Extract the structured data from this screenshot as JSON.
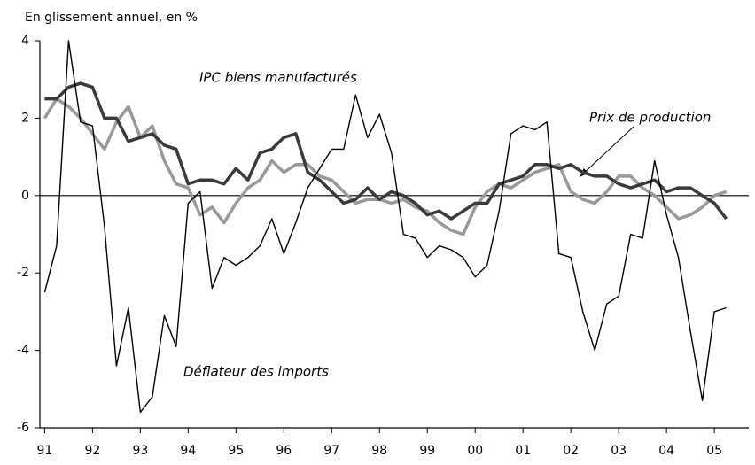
{
  "chart_data": {
    "type": "line",
    "ylabel": "En glissement annuel, en %",
    "x": [
      1991,
      1991.25,
      1991.5,
      1991.75,
      1992,
      1992.25,
      1992.5,
      1992.75,
      1993,
      1993.25,
      1993.5,
      1993.75,
      1994,
      1994.25,
      1994.5,
      1994.75,
      1995,
      1995.25,
      1995.5,
      1995.75,
      1996,
      1996.25,
      1996.5,
      1996.75,
      1997,
      1997.25,
      1997.5,
      1997.75,
      1998,
      1998.25,
      1998.5,
      1998.75,
      1999,
      1999.25,
      1999.5,
      1999.75,
      2000,
      2000.25,
      2000.5,
      2000.75,
      2001,
      2001.25,
      2001.5,
      2001.75,
      2002,
      2002.25,
      2002.5,
      2002.75,
      2003,
      2003.25,
      2003.5,
      2003.75,
      2004,
      2004.25,
      2004.5,
      2004.75,
      2005,
      2005.25
    ],
    "series": [
      {
        "name": "Déflateur des imports",
        "color": "#000000",
        "width": 1.4,
        "values": [
          -2.5,
          -1.3,
          4.0,
          1.9,
          1.8,
          -0.8,
          -4.4,
          -2.9,
          -5.6,
          -5.2,
          -3.1,
          -3.9,
          -0.2,
          0.1,
          -2.4,
          -1.6,
          -1.8,
          -1.6,
          -1.3,
          -0.6,
          -1.5,
          -0.7,
          0.2,
          0.7,
          1.2,
          1.2,
          2.6,
          1.5,
          2.1,
          1.1,
          -1.0,
          -1.1,
          -1.6,
          -1.3,
          -1.4,
          -1.6,
          -2.1,
          -1.8,
          -0.4,
          1.6,
          1.8,
          1.7,
          1.9,
          -1.5,
          -1.6,
          -3.0,
          -4.0,
          -2.8,
          -2.6,
          -1.0,
          -1.1,
          0.9,
          -0.5,
          -1.6,
          -3.5,
          -5.3,
          -3.0,
          -2.9
        ]
      },
      {
        "name": "IPC biens manufacturés",
        "color": "#3a3a3a",
        "width": 3.5,
        "values": [
          2.5,
          2.5,
          2.8,
          2.9,
          2.8,
          2.0,
          2.0,
          1.4,
          1.5,
          1.6,
          1.3,
          1.2,
          0.3,
          0.4,
          0.4,
          0.3,
          0.7,
          0.4,
          1.1,
          1.2,
          1.5,
          1.6,
          0.6,
          0.4,
          0.1,
          -0.2,
          -0.1,
          0.2,
          -0.1,
          0.1,
          0.0,
          -0.2,
          -0.5,
          -0.4,
          -0.6,
          -0.4,
          -0.2,
          -0.2,
          0.3,
          0.4,
          0.5,
          0.8,
          0.8,
          0.7,
          0.8,
          0.6,
          0.5,
          0.5,
          0.3,
          0.2,
          0.3,
          0.4,
          0.1,
          0.2,
          0.2,
          0.0,
          -0.2,
          -0.6
        ]
      },
      {
        "name": "Prix de production",
        "color": "#999999",
        "width": 3.5,
        "values": [
          2.0,
          2.5,
          2.3,
          2.0,
          1.6,
          1.2,
          1.9,
          2.3,
          1.5,
          1.8,
          0.9,
          0.3,
          0.2,
          -0.5,
          -0.3,
          -0.7,
          -0.2,
          0.2,
          0.4,
          0.9,
          0.6,
          0.8,
          0.8,
          0.5,
          0.4,
          0.1,
          -0.2,
          -0.1,
          -0.1,
          -0.2,
          -0.1,
          -0.3,
          -0.4,
          -0.7,
          -0.9,
          -1.0,
          -0.3,
          0.1,
          0.3,
          0.2,
          0.4,
          0.6,
          0.7,
          0.8,
          0.1,
          -0.1,
          -0.2,
          0.1,
          0.5,
          0.5,
          0.2,
          0.0,
          -0.3,
          -0.6,
          -0.5,
          -0.3,
          0.0,
          0.1
        ]
      }
    ],
    "xlim": [
      1990.9,
      2005.72
    ],
    "xticks": [
      {
        "value": 1991,
        "label": "91"
      },
      {
        "value": 1992,
        "label": "92"
      },
      {
        "value": 1993,
        "label": "93"
      },
      {
        "value": 1994,
        "label": "94"
      },
      {
        "value": 1995,
        "label": "95"
      },
      {
        "value": 1996,
        "label": "96"
      },
      {
        "value": 1997,
        "label": "97"
      },
      {
        "value": 1998,
        "label": "98"
      },
      {
        "value": 1999,
        "label": "99"
      },
      {
        "value": 2000,
        "label": "00"
      },
      {
        "value": 2001,
        "label": "01"
      },
      {
        "value": 2002,
        "label": "02"
      },
      {
        "value": 2003,
        "label": "03"
      },
      {
        "value": 2004,
        "label": "04"
      },
      {
        "value": 2005,
        "label": "05"
      }
    ],
    "ylim": [
      -6,
      4
    ],
    "yticks": [
      -6,
      -4,
      -2,
      0,
      2,
      4
    ]
  }
}
